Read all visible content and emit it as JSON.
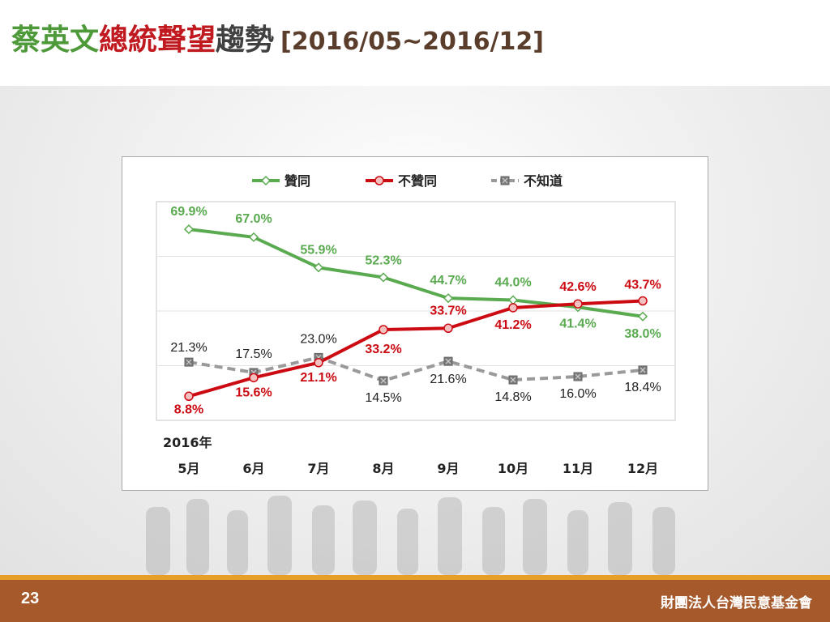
{
  "slide": {
    "title_part1": "蔡英文",
    "title_part2": "總統聲望",
    "title_part3": "趨勢",
    "title_range": "[2016/05~2016/12]",
    "page_number": "23",
    "organization": "財團法人台灣民意基金會"
  },
  "colors": {
    "title_green": "#4e9a3a",
    "title_red": "#c0191f",
    "title_dark": "#404040",
    "title_range": "#5a3d2b"
  },
  "chart_data": {
    "type": "line",
    "year_label": "2016年",
    "categories": [
      "5月",
      "6月",
      "7月",
      "8月",
      "9月",
      "10月",
      "11月",
      "12月"
    ],
    "ylim": [
      0,
      80
    ],
    "grid": "horizontal",
    "legend_position": "top",
    "series": [
      {
        "name": "贊同",
        "values": [
          69.9,
          67.0,
          55.9,
          52.3,
          44.7,
          44.0,
          41.4,
          38.0
        ],
        "labels": [
          "69.9%",
          "67.0%",
          "55.9%",
          "52.3%",
          "44.7%",
          "44.0%",
          "41.4%",
          "38.0%"
        ],
        "color": "#5aaa50",
        "marker": "diamond",
        "label_bold": true
      },
      {
        "name": "不贊同",
        "values": [
          8.8,
          15.6,
          21.1,
          33.2,
          33.7,
          41.2,
          42.6,
          43.7
        ],
        "labels": [
          "8.8%",
          "15.6%",
          "21.1%",
          "33.2%",
          "33.7%",
          "41.2%",
          "42.6%",
          "43.7%"
        ],
        "color": "#cc0a12",
        "marker": "circle",
        "label_bold": true
      },
      {
        "name": "不知道",
        "values": [
          21.3,
          17.5,
          23.0,
          14.5,
          21.6,
          14.8,
          16.0,
          18.4
        ],
        "labels": [
          "21.3%",
          "17.5%",
          "23.0%",
          "14.5%",
          "21.6%",
          "14.8%",
          "16.0%",
          "18.4%"
        ],
        "color": "#9a9a9a",
        "marker": "square-x",
        "dashed": true,
        "label_bold": false
      }
    ]
  }
}
